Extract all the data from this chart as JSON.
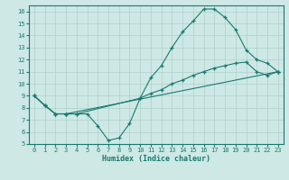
{
  "xlabel": "Humidex (Indice chaleur)",
  "bg_color": "#cde8e5",
  "line_color": "#1a7a6e",
  "grid_color": "#aed0cc",
  "xlim": [
    -0.5,
    23.5
  ],
  "ylim": [
    5,
    16.5
  ],
  "yticks": [
    5,
    6,
    7,
    8,
    9,
    10,
    11,
    12,
    13,
    14,
    15,
    16
  ],
  "xticks": [
    0,
    1,
    2,
    3,
    4,
    5,
    6,
    7,
    8,
    9,
    10,
    11,
    12,
    13,
    14,
    15,
    16,
    17,
    18,
    19,
    20,
    21,
    22,
    23
  ],
  "line1_x": [
    0,
    1,
    2,
    3,
    4,
    10,
    11,
    12,
    13,
    14,
    15,
    16,
    17,
    18,
    19,
    20,
    21,
    22,
    23
  ],
  "line1_y": [
    9.0,
    8.2,
    7.5,
    7.5,
    7.5,
    8.8,
    10.5,
    11.5,
    13.0,
    14.3,
    15.2,
    16.2,
    16.2,
    15.5,
    14.5,
    12.8,
    12.0,
    11.7,
    11.0
  ],
  "line2_x": [
    0,
    1,
    2,
    3,
    4,
    5,
    6,
    7,
    8,
    9,
    10,
    11,
    12,
    13,
    14,
    15,
    16,
    17,
    18,
    19,
    20,
    21,
    22,
    23
  ],
  "line2_y": [
    9.0,
    8.2,
    7.5,
    7.5,
    7.5,
    7.5,
    6.5,
    5.3,
    5.5,
    6.7,
    8.8,
    9.2,
    9.5,
    10.0,
    10.3,
    10.7,
    11.0,
    11.3,
    11.5,
    11.7,
    11.8,
    11.0,
    10.7,
    11.0
  ],
  "line3_x": [
    0,
    1,
    2,
    3,
    23
  ],
  "line3_y": [
    9.0,
    8.2,
    7.5,
    7.5,
    11.0
  ]
}
